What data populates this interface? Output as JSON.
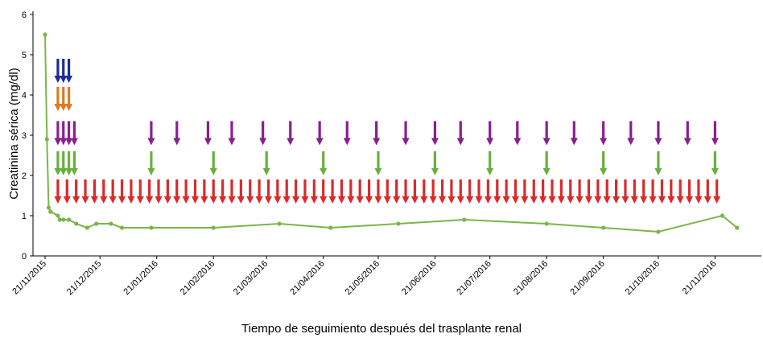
{
  "chart_data": {
    "type": "line",
    "title": "",
    "xlabel": "Tiempo de seguimiento después del trasplante renal",
    "ylabel": "Creatinina sérica (mg/dl)",
    "ylim": [
      0,
      6
    ],
    "yticks": [
      "0",
      "1",
      "2",
      "3",
      "4",
      "5",
      "6"
    ],
    "xlim": [
      "2015-11-21",
      "2016-12-15"
    ],
    "xticks": [
      {
        "date": "2015-11-21",
        "label": "21/11/2015"
      },
      {
        "date": "2015-12-21",
        "label": "21/12/2015"
      },
      {
        "date": "2016-01-21",
        "label": "21/01/2016"
      },
      {
        "date": "2016-02-21",
        "label": "21/02/2016"
      },
      {
        "date": "2016-03-21",
        "label": "21/03/2016"
      },
      {
        "date": "2016-04-21",
        "label": "21/04/2016"
      },
      {
        "date": "2016-05-21",
        "label": "21/05/2016"
      },
      {
        "date": "2016-06-21",
        "label": "21/06/2016"
      },
      {
        "date": "2016-07-21",
        "label": "21/07/2016"
      },
      {
        "date": "2016-08-21",
        "label": "21/08/2016"
      },
      {
        "date": "2016-09-21",
        "label": "21/09/2016"
      },
      {
        "date": "2016-10-21",
        "label": "21/10/2016"
      },
      {
        "date": "2016-11-21",
        "label": "21/11/2016"
      }
    ],
    "grid": false,
    "legend": "none",
    "series": [
      {
        "color": "#7ab648",
        "points": [
          {
            "x": "2015-11-21",
            "y": 5.5
          },
          {
            "x": "2015-11-22",
            "y": 2.9
          },
          {
            "x": "2015-11-23",
            "y": 1.2
          },
          {
            "x": "2015-11-24",
            "y": 1.1
          },
          {
            "x": "2015-11-28",
            "y": 1.0
          },
          {
            "x": "2015-11-29",
            "y": 0.9
          },
          {
            "x": "2015-12-01",
            "y": 0.9
          },
          {
            "x": "2015-12-04",
            "y": 0.9
          },
          {
            "x": "2015-12-08",
            "y": 0.8
          },
          {
            "x": "2015-12-14",
            "y": 0.7
          },
          {
            "x": "2015-12-19",
            "y": 0.8
          },
          {
            "x": "2015-12-27",
            "y": 0.8
          },
          {
            "x": "2016-01-02",
            "y": 0.7
          },
          {
            "x": "2016-01-18",
            "y": 0.7
          },
          {
            "x": "2016-02-21",
            "y": 0.7
          },
          {
            "x": "2016-03-28",
            "y": 0.8
          },
          {
            "x": "2016-04-25",
            "y": 0.7
          },
          {
            "x": "2016-06-01",
            "y": 0.8
          },
          {
            "x": "2016-07-07",
            "y": 0.9
          },
          {
            "x": "2016-08-21",
            "y": 0.8
          },
          {
            "x": "2016-09-21",
            "y": 0.7
          },
          {
            "x": "2016-10-21",
            "y": 0.6
          },
          {
            "x": "2016-11-25",
            "y": 1.0
          },
          {
            "x": "2016-12-03",
            "y": 0.7
          }
        ]
      }
    ],
    "arrow_rows": [
      {
        "color": "#d92b2b",
        "level": 1.3,
        "dates": [
          "2015-11-28",
          "2015-12-03",
          "2015-12-08",
          "2015-12-13",
          "2015-12-18",
          "2015-12-23",
          "2015-12-28",
          "2016-01-02",
          "2016-01-07",
          "2016-01-12",
          "2016-01-17",
          "2016-01-22",
          "2016-01-27",
          "2016-02-01",
          "2016-02-06",
          "2016-02-11",
          "2016-02-16",
          "2016-02-21",
          "2016-02-26",
          "2016-03-02",
          "2016-03-07",
          "2016-03-12",
          "2016-03-17",
          "2016-03-22",
          "2016-03-27",
          "2016-04-01",
          "2016-04-06",
          "2016-04-11",
          "2016-04-16",
          "2016-04-21",
          "2016-04-26",
          "2016-05-01",
          "2016-05-06",
          "2016-05-11",
          "2016-05-16",
          "2016-05-21",
          "2016-05-26",
          "2016-05-31",
          "2016-06-05",
          "2016-06-10",
          "2016-06-15",
          "2016-06-20",
          "2016-06-25",
          "2016-06-30",
          "2016-07-05",
          "2016-07-10",
          "2016-07-15",
          "2016-07-20",
          "2016-07-25",
          "2016-07-30",
          "2016-08-04",
          "2016-08-09",
          "2016-08-14",
          "2016-08-19",
          "2016-08-24",
          "2016-08-29",
          "2016-09-03",
          "2016-09-08",
          "2016-09-13",
          "2016-09-18",
          "2016-09-23",
          "2016-09-28",
          "2016-10-03",
          "2016-10-08",
          "2016-10-13",
          "2016-10-18",
          "2016-10-23",
          "2016-10-28",
          "2016-11-02",
          "2016-11-07",
          "2016-11-12",
          "2016-11-17",
          "2016-11-22"
        ]
      },
      {
        "color": "#67b13b",
        "level": 2.0,
        "dates": [
          "2015-11-28",
          "2015-12-01",
          "2015-12-04",
          "2015-12-07",
          "2016-01-18",
          "2016-02-21",
          "2016-03-21",
          "2016-04-21",
          "2016-05-21",
          "2016-06-21",
          "2016-07-21",
          "2016-08-21",
          "2016-09-21",
          "2016-10-21",
          "2016-11-21"
        ]
      },
      {
        "color": "#8a1f8f",
        "level": 2.75,
        "dates": [
          "2015-11-28",
          "2015-12-01",
          "2015-12-04",
          "2015-12-07",
          "2016-01-18",
          "2016-02-01",
          "2016-02-18",
          "2016-03-02",
          "2016-03-19",
          "2016-04-03",
          "2016-04-19",
          "2016-05-04",
          "2016-05-20",
          "2016-06-05",
          "2016-06-21",
          "2016-07-05",
          "2016-07-21",
          "2016-08-05",
          "2016-08-21",
          "2016-09-05",
          "2016-09-21",
          "2016-10-06",
          "2016-10-21",
          "2016-11-06",
          "2016-11-21"
        ]
      },
      {
        "color": "#e07a22",
        "level": 3.6,
        "dates": [
          "2015-11-28",
          "2015-12-01",
          "2015-12-04"
        ]
      },
      {
        "color": "#1f2a9a",
        "level": 4.3,
        "dates": [
          "2015-11-28",
          "2015-12-01",
          "2015-12-04"
        ]
      }
    ]
  }
}
